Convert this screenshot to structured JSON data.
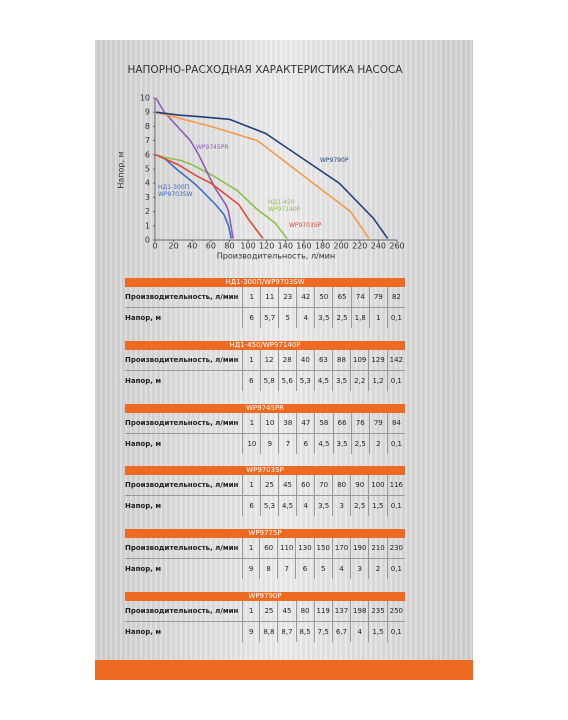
{
  "chart_data": {
    "type": "line",
    "title": "НАПОРНО-РАСХОДНАЯ ХАРАКТЕРИСТИКА НАСОСА",
    "y_label": "Напор, м",
    "x_label": "Производительность, л/мин",
    "xlim": [
      0,
      260
    ],
    "xticks": [
      0,
      20,
      40,
      60,
      80,
      100,
      120,
      140,
      160,
      180,
      200,
      220,
      240,
      260
    ],
    "ylim": [
      0,
      10
    ],
    "yticks": [
      0,
      1,
      2,
      3,
      4,
      5,
      6,
      7,
      8,
      9,
      10
    ],
    "grid": false,
    "series": [
      {
        "name": "НД1-300П WP9703SW",
        "color": "#3b6fc6",
        "x": [
          1,
          11,
          23,
          42,
          50,
          65,
          74,
          79,
          82
        ],
        "values": [
          6,
          5.7,
          5,
          4,
          3.5,
          2.5,
          1.8,
          1,
          0.1
        ]
      },
      {
        "name": "НД1-450 WP97140P",
        "color": "#8cc24a",
        "x": [
          1,
          12,
          28,
          40,
          63,
          88,
          109,
          129,
          142
        ],
        "values": [
          6,
          5.8,
          5.6,
          5.3,
          4.5,
          3.5,
          2.2,
          1.2,
          0.1
        ]
      },
      {
        "name": "WP9745PR",
        "color": "#8f5cb8",
        "x": [
          1,
          10,
          38,
          47,
          58,
          66,
          76,
          79,
          84
        ],
        "values": [
          10,
          9,
          7,
          6,
          4.5,
          3.5,
          2.5,
          2,
          0.1
        ]
      },
      {
        "name": "WP97035P",
        "color": "#e2483a",
        "x": [
          1,
          25,
          45,
          60,
          70,
          80,
          90,
          100,
          116
        ],
        "values": [
          6,
          5.3,
          4.5,
          4,
          3.5,
          3,
          2.5,
          1.5,
          0.1
        ]
      },
      {
        "color": "#f49a48",
        "x": [
          1,
          60,
          110,
          130,
          150,
          170,
          190,
          210,
          230
        ],
        "values": [
          9,
          8,
          7,
          6,
          5,
          4,
          3,
          2,
          0.1
        ]
      },
      {
        "name": "WP9790P",
        "color": "#233f7a",
        "x": [
          1,
          25,
          45,
          80,
          119,
          137,
          198,
          235,
          250
        ],
        "values": [
          9,
          8.8,
          8.7,
          8.5,
          7.5,
          6.7,
          4,
          1.5,
          0.1
        ]
      }
    ]
  },
  "tables": [
    {
      "title": "НД1-300П/WP9703SW",
      "rows": [
        [
          "Производительность, л/мин",
          "1",
          "11",
          "23",
          "42",
          "50",
          "65",
          "74",
          "79",
          "82"
        ],
        [
          "Напор, м",
          "6",
          "5,7",
          "5",
          "4",
          "3,5",
          "2,5",
          "1,8",
          "1",
          "0,1"
        ]
      ]
    },
    {
      "title": "НД1-450/WP97140P",
      "rows": [
        [
          "Производительность, л/мин",
          "1",
          "12",
          "28",
          "40",
          "63",
          "88",
          "109",
          "129",
          "142"
        ],
        [
          "Напор, м",
          "6",
          "5,8",
          "5,6",
          "5,3",
          "4,5",
          "3,5",
          "2,2",
          "1,2",
          "0,1"
        ]
      ]
    },
    {
      "title": "WP9745PR",
      "rows": [
        [
          "Производительность, л/мин",
          "1",
          "10",
          "38",
          "47",
          "58",
          "66",
          "76",
          "79",
          "84"
        ],
        [
          "Напор, м",
          "10",
          "9",
          "7",
          "6",
          "4,5",
          "3,5",
          "2,5",
          "2",
          "0,1"
        ]
      ]
    },
    {
      "title": "WP97035P",
      "rows": [
        [
          "Производительность, л/мин",
          "1",
          "25",
          "45",
          "60",
          "70",
          "80",
          "90",
          "100",
          "116"
        ],
        [
          "Напор, м",
          "6",
          "5,3",
          "4,5",
          "4",
          "3,5",
          "3",
          "2,5",
          "1,5",
          "0,1"
        ]
      ]
    },
    {
      "title": "WP9775P",
      "rows": [
        [
          "Производительность, л/мин",
          "1",
          "60",
          "110",
          "130",
          "150",
          "170",
          "190",
          "210",
          "230"
        ],
        [
          "Напор, м",
          "9",
          "8",
          "7",
          "6",
          "5",
          "4",
          "3",
          "2",
          "0,1"
        ]
      ]
    },
    {
      "title": "WP9790P",
      "rows": [
        [
          "Производительность, л/мин",
          "1",
          "25",
          "45",
          "80",
          "119",
          "137",
          "198",
          "235",
          "250"
        ],
        [
          "Напор, м",
          "9",
          "8,8",
          "8,7",
          "8,5",
          "7,5",
          "6,7",
          "4",
          "1,5",
          "0,1"
        ]
      ]
    }
  ]
}
